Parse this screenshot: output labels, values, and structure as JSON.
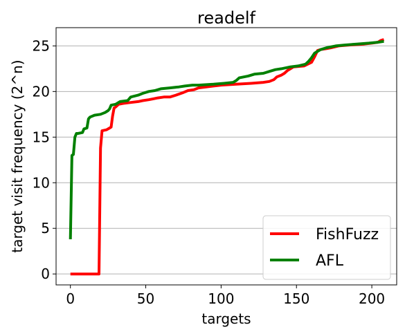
{
  "chart_data": {
    "type": "line",
    "title": "readelf",
    "xlabel": "targets",
    "ylabel": "target visit frequency (2^n)",
    "xlim": [
      -9.5,
      216.5
    ],
    "ylim": [
      -1.2,
      27.0
    ],
    "x_ticks": [
      0,
      50,
      100,
      150,
      200
    ],
    "y_ticks": [
      0,
      5,
      10,
      15,
      20,
      25
    ],
    "grid": "horizontal",
    "legend_position": "lower-right",
    "series": [
      {
        "name": "FishFuzz",
        "color": "#ff0000",
        "points": [
          [
            0,
            0
          ],
          [
            19,
            0
          ],
          [
            20,
            13.8
          ],
          [
            21,
            15.7
          ],
          [
            24,
            15.8
          ],
          [
            26,
            16.0
          ],
          [
            27,
            16.1
          ],
          [
            28,
            17.3
          ],
          [
            29,
            18.2
          ],
          [
            30,
            18.3
          ],
          [
            32,
            18.6
          ],
          [
            35,
            18.7
          ],
          [
            40,
            18.8
          ],
          [
            45,
            18.9
          ],
          [
            48,
            19.0
          ],
          [
            52,
            19.1
          ],
          [
            55,
            19.2
          ],
          [
            58,
            19.3
          ],
          [
            62,
            19.4
          ],
          [
            66,
            19.4
          ],
          [
            70,
            19.6
          ],
          [
            75,
            19.9
          ],
          [
            78,
            20.1
          ],
          [
            82,
            20.2
          ],
          [
            85,
            20.4
          ],
          [
            95,
            20.6
          ],
          [
            100,
            20.7
          ],
          [
            110,
            20.8
          ],
          [
            120,
            20.9
          ],
          [
            128,
            21.0
          ],
          [
            132,
            21.1
          ],
          [
            135,
            21.3
          ],
          [
            137,
            21.6
          ],
          [
            140,
            21.8
          ],
          [
            142,
            22.0
          ],
          [
            144,
            22.3
          ],
          [
            146,
            22.5
          ],
          [
            148,
            22.7
          ],
          [
            155,
            22.8
          ],
          [
            160,
            23.2
          ],
          [
            162,
            23.8
          ],
          [
            164,
            24.5
          ],
          [
            166,
            24.6
          ],
          [
            170,
            24.7
          ],
          [
            173,
            24.8
          ],
          [
            178,
            25.0
          ],
          [
            185,
            25.1
          ],
          [
            195,
            25.2
          ],
          [
            200,
            25.3
          ],
          [
            204,
            25.4
          ],
          [
            206,
            25.6
          ],
          [
            208,
            25.7
          ]
        ]
      },
      {
        "name": "AFL",
        "color": "#008000",
        "points": [
          [
            0,
            3.8
          ],
          [
            1,
            13.0
          ],
          [
            2,
            13.1
          ],
          [
            3,
            15.0
          ],
          [
            4,
            15.4
          ],
          [
            5,
            15.4
          ],
          [
            8,
            15.5
          ],
          [
            9,
            15.9
          ],
          [
            11,
            16.0
          ],
          [
            12,
            17.0
          ],
          [
            13,
            17.2
          ],
          [
            16,
            17.4
          ],
          [
            20,
            17.5
          ],
          [
            23,
            17.7
          ],
          [
            25,
            17.9
          ],
          [
            26,
            18.1
          ],
          [
            27,
            18.5
          ],
          [
            30,
            18.6
          ],
          [
            33,
            18.9
          ],
          [
            38,
            19.0
          ],
          [
            40,
            19.4
          ],
          [
            45,
            19.6
          ],
          [
            48,
            19.8
          ],
          [
            52,
            20.0
          ],
          [
            56,
            20.1
          ],
          [
            60,
            20.3
          ],
          [
            66,
            20.4
          ],
          [
            72,
            20.5
          ],
          [
            76,
            20.6
          ],
          [
            81,
            20.7
          ],
          [
            85,
            20.7
          ],
          [
            95,
            20.8
          ],
          [
            102,
            20.9
          ],
          [
            108,
            21.0
          ],
          [
            110,
            21.2
          ],
          [
            112,
            21.5
          ],
          [
            118,
            21.7
          ],
          [
            122,
            21.9
          ],
          [
            128,
            22.0
          ],
          [
            132,
            22.2
          ],
          [
            136,
            22.4
          ],
          [
            140,
            22.5
          ],
          [
            146,
            22.7
          ],
          [
            151,
            22.8
          ],
          [
            156,
            23.0
          ],
          [
            158,
            23.3
          ],
          [
            160,
            23.7
          ],
          [
            162,
            24.2
          ],
          [
            166,
            24.6
          ],
          [
            170,
            24.8
          ],
          [
            176,
            25.0
          ],
          [
            182,
            25.1
          ],
          [
            190,
            25.2
          ],
          [
            198,
            25.3
          ],
          [
            204,
            25.4
          ],
          [
            208,
            25.5
          ]
        ]
      }
    ]
  }
}
